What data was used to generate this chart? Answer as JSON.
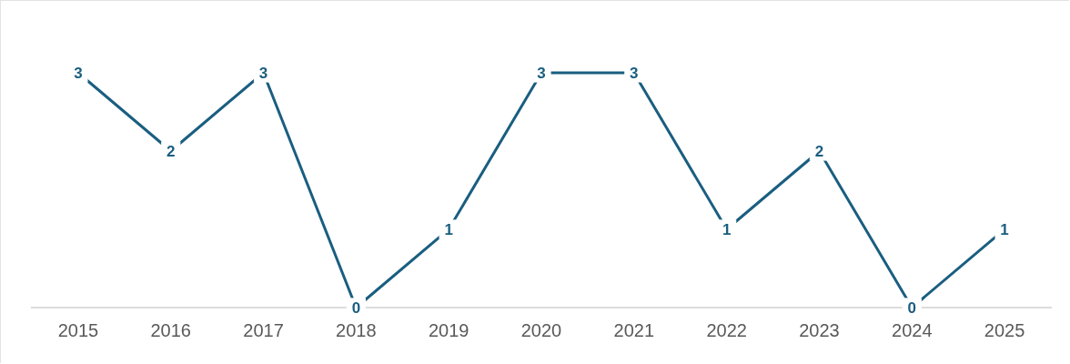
{
  "chart_data": {
    "type": "line",
    "categories": [
      "2015",
      "2016",
      "2017",
      "2018",
      "2019",
      "2020",
      "2021",
      "2022",
      "2023",
      "2024",
      "2025"
    ],
    "series": [
      {
        "color": "#1a5e80",
        "values": [
          3,
          2,
          3,
          0,
          1,
          3,
          3,
          1,
          2,
          0,
          1
        ]
      }
    ],
    "data_labels": true,
    "grid": false,
    "legend": false,
    "marker": "square",
    "line_style": "solid"
  }
}
